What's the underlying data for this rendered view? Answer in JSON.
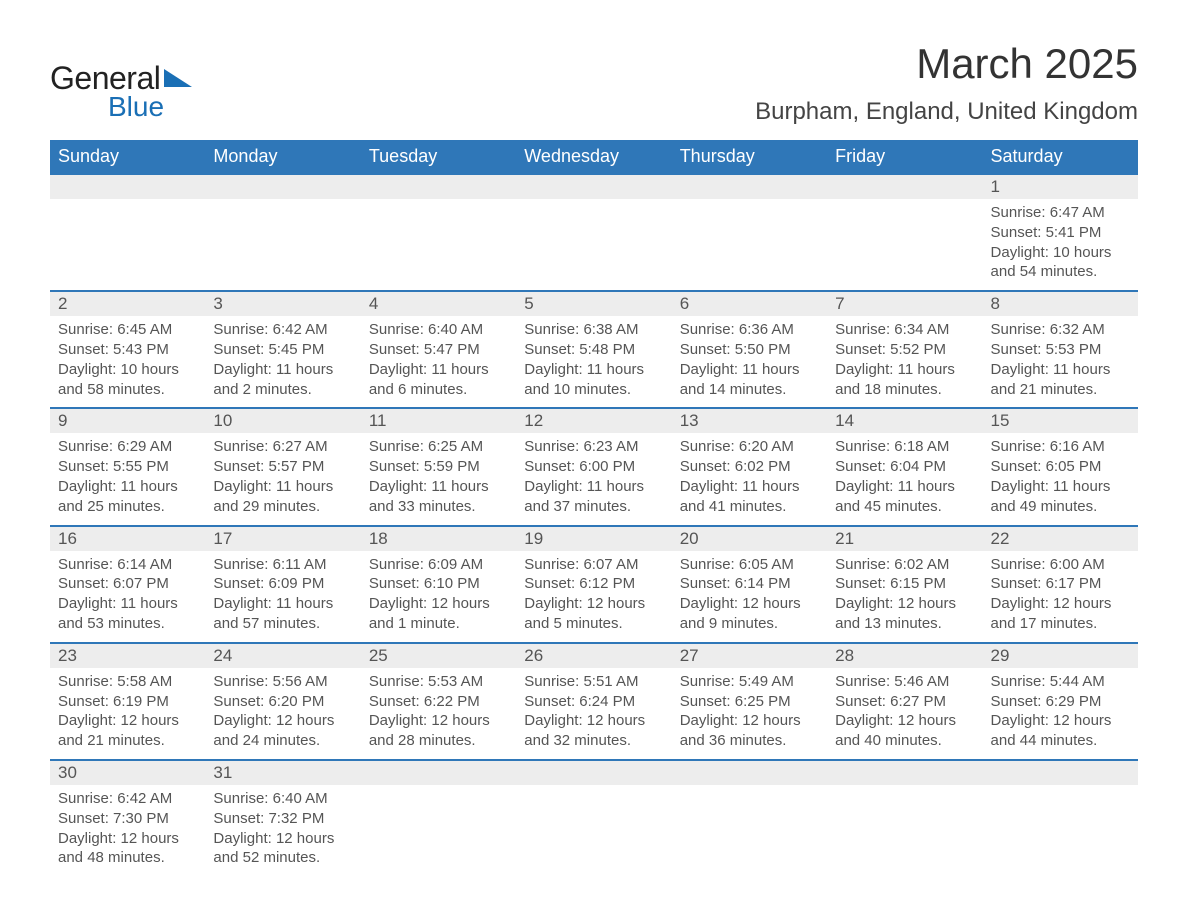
{
  "logo": {
    "word1": "General",
    "word2": "Blue"
  },
  "header": {
    "month_title": "March 2025",
    "location": "Burpham, England, United Kingdom"
  },
  "calendar": {
    "type": "table",
    "header_bg": "#2f77b8",
    "header_fg": "#ffffff",
    "daynum_bg": "#ededed",
    "row_border": "#2f77b8",
    "text_color": "#555555",
    "columns": [
      "Sunday",
      "Monday",
      "Tuesday",
      "Wednesday",
      "Thursday",
      "Friday",
      "Saturday"
    ],
    "weeks": [
      [
        null,
        null,
        null,
        null,
        null,
        null,
        {
          "n": "1",
          "sr": "Sunrise: 6:47 AM",
          "ss": "Sunset: 5:41 PM",
          "d1": "Daylight: 10 hours",
          "d2": "and 54 minutes."
        }
      ],
      [
        {
          "n": "2",
          "sr": "Sunrise: 6:45 AM",
          "ss": "Sunset: 5:43 PM",
          "d1": "Daylight: 10 hours",
          "d2": "and 58 minutes."
        },
        {
          "n": "3",
          "sr": "Sunrise: 6:42 AM",
          "ss": "Sunset: 5:45 PM",
          "d1": "Daylight: 11 hours",
          "d2": "and 2 minutes."
        },
        {
          "n": "4",
          "sr": "Sunrise: 6:40 AM",
          "ss": "Sunset: 5:47 PM",
          "d1": "Daylight: 11 hours",
          "d2": "and 6 minutes."
        },
        {
          "n": "5",
          "sr": "Sunrise: 6:38 AM",
          "ss": "Sunset: 5:48 PM",
          "d1": "Daylight: 11 hours",
          "d2": "and 10 minutes."
        },
        {
          "n": "6",
          "sr": "Sunrise: 6:36 AM",
          "ss": "Sunset: 5:50 PM",
          "d1": "Daylight: 11 hours",
          "d2": "and 14 minutes."
        },
        {
          "n": "7",
          "sr": "Sunrise: 6:34 AM",
          "ss": "Sunset: 5:52 PM",
          "d1": "Daylight: 11 hours",
          "d2": "and 18 minutes."
        },
        {
          "n": "8",
          "sr": "Sunrise: 6:32 AM",
          "ss": "Sunset: 5:53 PM",
          "d1": "Daylight: 11 hours",
          "d2": "and 21 minutes."
        }
      ],
      [
        {
          "n": "9",
          "sr": "Sunrise: 6:29 AM",
          "ss": "Sunset: 5:55 PM",
          "d1": "Daylight: 11 hours",
          "d2": "and 25 minutes."
        },
        {
          "n": "10",
          "sr": "Sunrise: 6:27 AM",
          "ss": "Sunset: 5:57 PM",
          "d1": "Daylight: 11 hours",
          "d2": "and 29 minutes."
        },
        {
          "n": "11",
          "sr": "Sunrise: 6:25 AM",
          "ss": "Sunset: 5:59 PM",
          "d1": "Daylight: 11 hours",
          "d2": "and 33 minutes."
        },
        {
          "n": "12",
          "sr": "Sunrise: 6:23 AM",
          "ss": "Sunset: 6:00 PM",
          "d1": "Daylight: 11 hours",
          "d2": "and 37 minutes."
        },
        {
          "n": "13",
          "sr": "Sunrise: 6:20 AM",
          "ss": "Sunset: 6:02 PM",
          "d1": "Daylight: 11 hours",
          "d2": "and 41 minutes."
        },
        {
          "n": "14",
          "sr": "Sunrise: 6:18 AM",
          "ss": "Sunset: 6:04 PM",
          "d1": "Daylight: 11 hours",
          "d2": "and 45 minutes."
        },
        {
          "n": "15",
          "sr": "Sunrise: 6:16 AM",
          "ss": "Sunset: 6:05 PM",
          "d1": "Daylight: 11 hours",
          "d2": "and 49 minutes."
        }
      ],
      [
        {
          "n": "16",
          "sr": "Sunrise: 6:14 AM",
          "ss": "Sunset: 6:07 PM",
          "d1": "Daylight: 11 hours",
          "d2": "and 53 minutes."
        },
        {
          "n": "17",
          "sr": "Sunrise: 6:11 AM",
          "ss": "Sunset: 6:09 PM",
          "d1": "Daylight: 11 hours",
          "d2": "and 57 minutes."
        },
        {
          "n": "18",
          "sr": "Sunrise: 6:09 AM",
          "ss": "Sunset: 6:10 PM",
          "d1": "Daylight: 12 hours",
          "d2": "and 1 minute."
        },
        {
          "n": "19",
          "sr": "Sunrise: 6:07 AM",
          "ss": "Sunset: 6:12 PM",
          "d1": "Daylight: 12 hours",
          "d2": "and 5 minutes."
        },
        {
          "n": "20",
          "sr": "Sunrise: 6:05 AM",
          "ss": "Sunset: 6:14 PM",
          "d1": "Daylight: 12 hours",
          "d2": "and 9 minutes."
        },
        {
          "n": "21",
          "sr": "Sunrise: 6:02 AM",
          "ss": "Sunset: 6:15 PM",
          "d1": "Daylight: 12 hours",
          "d2": "and 13 minutes."
        },
        {
          "n": "22",
          "sr": "Sunrise: 6:00 AM",
          "ss": "Sunset: 6:17 PM",
          "d1": "Daylight: 12 hours",
          "d2": "and 17 minutes."
        }
      ],
      [
        {
          "n": "23",
          "sr": "Sunrise: 5:58 AM",
          "ss": "Sunset: 6:19 PM",
          "d1": "Daylight: 12 hours",
          "d2": "and 21 minutes."
        },
        {
          "n": "24",
          "sr": "Sunrise: 5:56 AM",
          "ss": "Sunset: 6:20 PM",
          "d1": "Daylight: 12 hours",
          "d2": "and 24 minutes."
        },
        {
          "n": "25",
          "sr": "Sunrise: 5:53 AM",
          "ss": "Sunset: 6:22 PM",
          "d1": "Daylight: 12 hours",
          "d2": "and 28 minutes."
        },
        {
          "n": "26",
          "sr": "Sunrise: 5:51 AM",
          "ss": "Sunset: 6:24 PM",
          "d1": "Daylight: 12 hours",
          "d2": "and 32 minutes."
        },
        {
          "n": "27",
          "sr": "Sunrise: 5:49 AM",
          "ss": "Sunset: 6:25 PM",
          "d1": "Daylight: 12 hours",
          "d2": "and 36 minutes."
        },
        {
          "n": "28",
          "sr": "Sunrise: 5:46 AM",
          "ss": "Sunset: 6:27 PM",
          "d1": "Daylight: 12 hours",
          "d2": "and 40 minutes."
        },
        {
          "n": "29",
          "sr": "Sunrise: 5:44 AM",
          "ss": "Sunset: 6:29 PM",
          "d1": "Daylight: 12 hours",
          "d2": "and 44 minutes."
        }
      ],
      [
        {
          "n": "30",
          "sr": "Sunrise: 6:42 AM",
          "ss": "Sunset: 7:30 PM",
          "d1": "Daylight: 12 hours",
          "d2": "and 48 minutes."
        },
        {
          "n": "31",
          "sr": "Sunrise: 6:40 AM",
          "ss": "Sunset: 7:32 PM",
          "d1": "Daylight: 12 hours",
          "d2": "and 52 minutes."
        },
        null,
        null,
        null,
        null,
        null
      ]
    ]
  }
}
